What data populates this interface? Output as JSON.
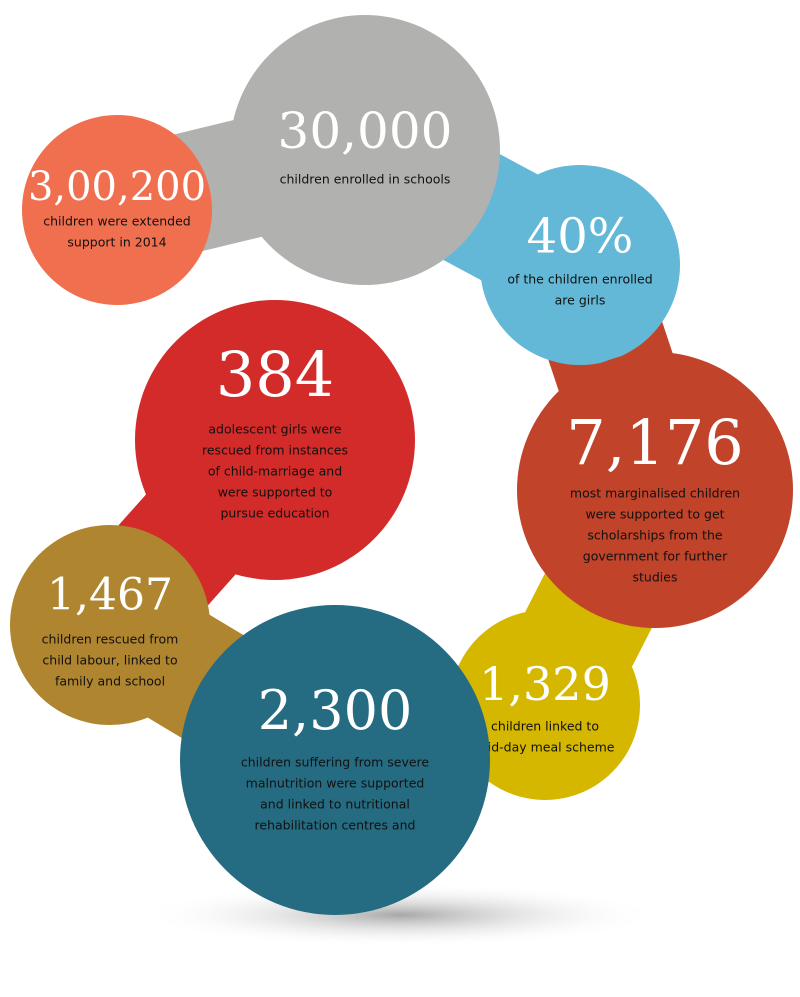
{
  "circles": [
    {
      "number": "3,00,200",
      "lines": [
        "children were extended",
        "support in 2014"
      ]
    },
    {
      "number": "30,000",
      "lines": [
        "children enrolled in schools"
      ]
    },
    {
      "number": "40%",
      "lines": [
        "of the children enrolled",
        "are girls"
      ]
    },
    {
      "number": "7,176",
      "lines": [
        "most marginalised children",
        "were supported to get",
        "scholarships from the",
        "government for further",
        "studies"
      ]
    },
    {
      "number": "1,329",
      "lines": [
        "children linked to",
        "mid-day meal scheme"
      ]
    },
    {
      "number": "2,300",
      "lines": [
        "children suffering from severe",
        "malnutrition were supported",
        "and linked to nutritional",
        "rehabilitation centres and"
      ]
    },
    {
      "number": "1,467",
      "lines": [
        "children rescued from",
        "child labour, linked to",
        "family and school"
      ]
    },
    {
      "number": "384",
      "lines": [
        "adolescent girls were",
        "rescued from instances",
        "of child-marriage and",
        "were supported to",
        "pursue education"
      ]
    }
  ]
}
